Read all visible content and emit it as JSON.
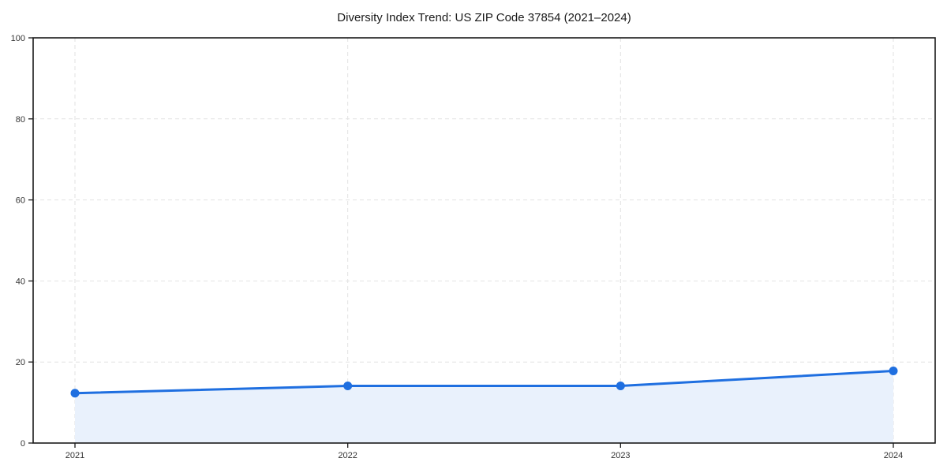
{
  "chart_data": {
    "type": "line",
    "title": "Diversity Index Trend: US ZIP Code 37854 (2021–2024)",
    "categories": [
      "2021",
      "2022",
      "2023",
      "2024"
    ],
    "series": [
      {
        "name": "Diversity Index",
        "values": [
          12.3,
          14.1,
          14.1,
          17.8
        ]
      }
    ],
    "xlabel": "",
    "ylabel": "",
    "ylim": [
      0,
      100
    ],
    "yticks": [
      0,
      20,
      40,
      60,
      80,
      100
    ],
    "grid": true,
    "grid_style": "dashed",
    "legend": "none",
    "marker": "circle",
    "area_fill": true,
    "colors": {
      "line": "#1f6fe0",
      "marker": "#1f6fe0",
      "area_fill": "#e9f1fc",
      "grid": "#e2e2e2",
      "spine": "#1a1a1a",
      "tick_text": "#333333",
      "title_text": "#1a1a1a",
      "background": "#ffffff"
    }
  }
}
